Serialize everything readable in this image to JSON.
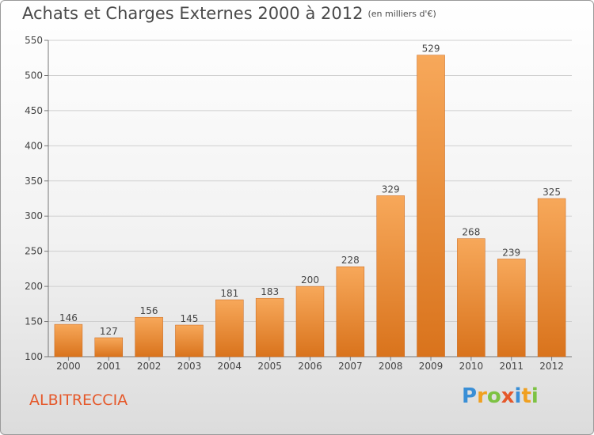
{
  "title": "Achats et Charges Externes 2000 à 2012",
  "subtitle": "(en milliers d'€)",
  "place_name": "ALBITRECCIA",
  "logo": {
    "letters": [
      "P",
      "r",
      "o",
      "x",
      "i",
      "t",
      "i"
    ],
    "colors": [
      "#3a8fd6",
      "#f0a020",
      "#7dc243",
      "#e5582a",
      "#3a8fd6",
      "#f0a020",
      "#7dc243"
    ]
  },
  "colors": {
    "bar_top": "#f7a85a",
    "bar_bottom": "#d9731c",
    "label": "#444444",
    "grid": "#cfcfcf"
  },
  "chart_data": {
    "type": "bar",
    "categories": [
      "2000",
      "2001",
      "2002",
      "2003",
      "2004",
      "2005",
      "2006",
      "2007",
      "2008",
      "2009",
      "2010",
      "2011",
      "2012"
    ],
    "values": [
      146,
      127,
      156,
      145,
      181,
      183,
      200,
      228,
      329,
      529,
      268,
      239,
      325
    ],
    "ylim": [
      100,
      550
    ],
    "yticks": [
      100,
      150,
      200,
      250,
      300,
      350,
      400,
      450,
      500,
      550
    ],
    "grid": true,
    "data_labels": true
  }
}
